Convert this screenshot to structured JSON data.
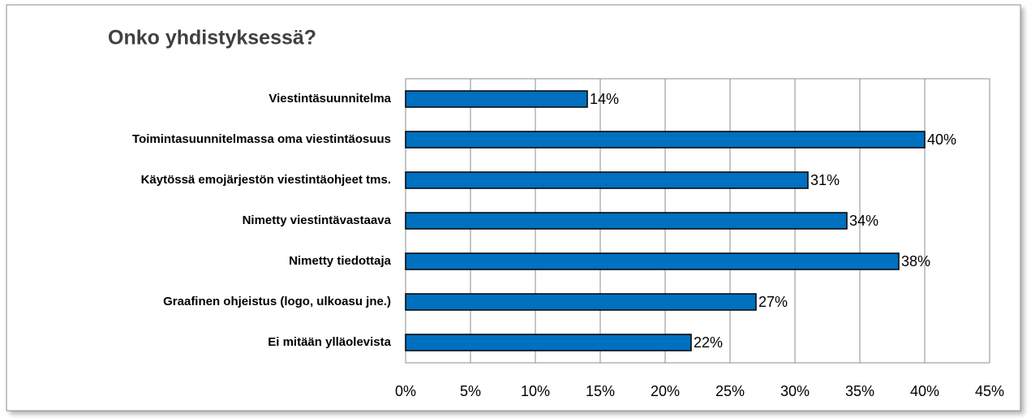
{
  "chart_data": {
    "type": "bar",
    "title": "Onko yhdistyksessä?",
    "categories": [
      "Viestintäsuunnitelma",
      "Toimintasuunnitelmassa oma viestintäosuus",
      "Käytössä emojärjestön viestintäohjeet tms.",
      "Nimetty viestintävastaava",
      "Nimetty tiedottaja",
      "Graafinen ohjeistus (logo, ulkoasu jne.)",
      "Ei mitään ylläolevista"
    ],
    "values": [
      14,
      40,
      31,
      34,
      38,
      27,
      22
    ],
    "value_labels": [
      "14%",
      "40%",
      "31%",
      "34%",
      "38%",
      "27%",
      "22%"
    ],
    "color": "#0070c0",
    "xlim": [
      0,
      45
    ],
    "xticks": [
      {
        "value": 0,
        "label": "0%"
      },
      {
        "value": 5,
        "label": "5%"
      },
      {
        "value": 10,
        "label": "10%"
      },
      {
        "value": 15,
        "label": "15%"
      },
      {
        "value": 20,
        "label": "20%"
      },
      {
        "value": 25,
        "label": "25%"
      },
      {
        "value": 30,
        "label": "30%"
      },
      {
        "value": 35,
        "label": "35%"
      },
      {
        "value": 40,
        "label": "40%"
      },
      {
        "value": 45,
        "label": "45%"
      }
    ],
    "grid": true
  }
}
